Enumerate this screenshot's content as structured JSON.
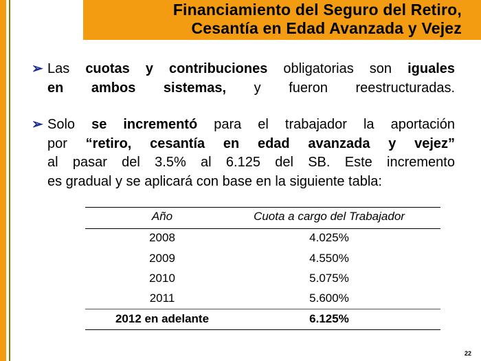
{
  "title": {
    "line1": "Financiamiento del Seguro del Retiro,",
    "line2": "Cesantía en Edad Avanzada y Vejez"
  },
  "bullet_glyph": "➢",
  "para1": {
    "row1": [
      "Las ",
      "cuotas y contribuciones",
      " obligatorias son ",
      "iguales"
    ],
    "row2": [
      "en ambos sistemas,",
      " y fueron reestructuradas."
    ]
  },
  "para2": {
    "row1": [
      "Solo ",
      "se incrementó",
      " para el trabajador la aportación"
    ],
    "row2": [
      "por ",
      "“retiro, cesantía en edad avanzada y vejez”"
    ],
    "row3": "al pasar  del 3.5% al 6.125 del SB. Este incremento",
    "row4": "es gradual y se aplicará con base en la siguiente tabla:"
  },
  "table": {
    "headers": [
      "Año",
      "Cuota a cargo del Trabajador"
    ],
    "rows": [
      [
        "2008",
        "4.025%"
      ],
      [
        "2009",
        "4.550%"
      ],
      [
        "2010",
        "5.075%"
      ],
      [
        "2011",
        "5.600%"
      ],
      [
        "2012 en adelante",
        "6.125%"
      ]
    ]
  },
  "page_number": "22",
  "colors": {
    "accent": "#f39c12",
    "bullet": "#1f2d8f"
  }
}
